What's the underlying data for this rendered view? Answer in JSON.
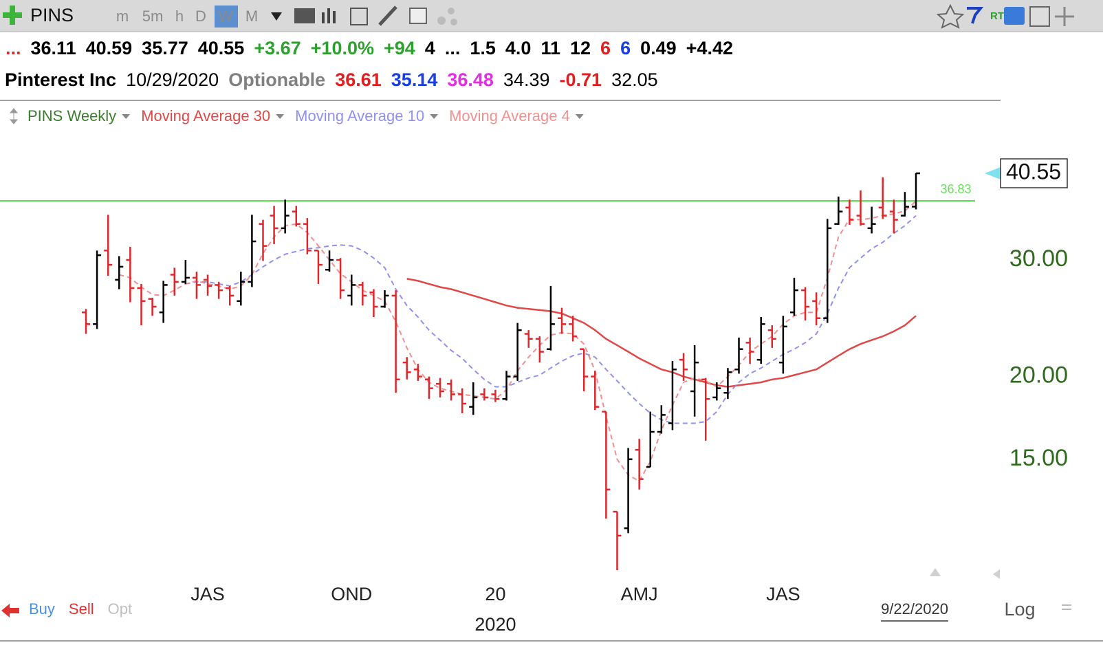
{
  "toolbar": {
    "symbol": "PINS",
    "timeframes": [
      "m",
      "5m",
      "h",
      "D",
      "W",
      "M"
    ],
    "active_timeframe": 4,
    "rt_label": "RT"
  },
  "quote": [
    {
      "text": "...",
      "color": "#d03030",
      "bold": false
    },
    {
      "text": "36.11",
      "color": "#000000",
      "bold": true
    },
    {
      "text": "40.59",
      "color": "#000000",
      "bold": true
    },
    {
      "text": "35.77",
      "color": "#000000",
      "bold": true
    },
    {
      "text": "40.55",
      "color": "#000000",
      "bold": true
    },
    {
      "text": "+3.67",
      "color": "#2ea02e",
      "bold": true
    },
    {
      "text": "+10.0%",
      "color": "#2ea02e",
      "bold": true
    },
    {
      "text": "+94",
      "color": "#2ea02e",
      "bold": true
    },
    {
      "text": "4",
      "color": "#000000",
      "bold": true
    },
    {
      "text": "...",
      "color": "#000000",
      "bold": true
    },
    {
      "text": "1.5",
      "color": "#000000",
      "bold": true
    },
    {
      "text": "4.0",
      "color": "#000000",
      "bold": true
    },
    {
      "text": "11",
      "color": "#000000",
      "bold": false
    },
    {
      "text": "12",
      "color": "#000000",
      "bold": true
    },
    {
      "text": "6",
      "color": "#e02020",
      "bold": true
    },
    {
      "text": "6",
      "color": "#1a3fe0",
      "bold": true
    },
    {
      "text": "0.49",
      "color": "#000000",
      "bold": true
    },
    {
      "text": "+4.42",
      "color": "#000000",
      "bold": true
    }
  ],
  "info": [
    {
      "text": "Pinterest Inc",
      "color": "#000000",
      "bold": true
    },
    {
      "text": "10/29/2020",
      "color": "#000000",
      "bold": false
    },
    {
      "text": "Optionable",
      "color": "#808080",
      "bold": true
    },
    {
      "text": "36.61",
      "color": "#e02020",
      "bold": true
    },
    {
      "text": "35.14",
      "color": "#1a3fe0",
      "bold": true
    },
    {
      "text": "36.48",
      "color": "#e030e0",
      "bold": true
    },
    {
      "text": "34.39",
      "color": "#000000",
      "bold": false
    },
    {
      "text": "-0.71",
      "color": "#e02020",
      "bold": true
    },
    {
      "text": "32.05",
      "color": "#000000",
      "bold": false
    }
  ],
  "order_buttons": [
    {
      "text": "Buy",
      "color": "#4a8fe0"
    },
    {
      "text": "Sell",
      "color": "#e03030"
    },
    {
      "text": "Opt",
      "color": "#c0c0c0"
    }
  ],
  "chart_data": {
    "type": "ohlc",
    "name": "PINS Weekly",
    "name_color": "#3a7d2c",
    "up_color": "#000000",
    "down_color": "#e0262a",
    "log_scale": true,
    "grid": false,
    "categories": [
      null,
      null,
      null,
      null,
      null,
      null,
      null,
      null,
      null,
      null,
      null,
      "JAS",
      null,
      null,
      null,
      null,
      null,
      null,
      null,
      null,
      null,
      null,
      null,
      null,
      "OND",
      null,
      null,
      null,
      null,
      null,
      null,
      null,
      null,
      null,
      null,
      null,
      null,
      "20",
      null,
      null,
      null,
      null,
      null,
      null,
      null,
      null,
      null,
      null,
      null,
      null,
      "AMJ",
      null,
      null,
      null,
      null,
      null,
      null,
      null,
      null,
      null,
      null,
      null,
      null,
      "JAS",
      null,
      null,
      null,
      null,
      null,
      null,
      null,
      null,
      null,
      null,
      null,
      null
    ],
    "years": [
      null,
      null,
      null,
      null,
      null,
      null,
      null,
      null,
      null,
      null,
      null,
      null,
      null,
      null,
      null,
      null,
      null,
      null,
      null,
      null,
      null,
      null,
      null,
      null,
      null,
      null,
      null,
      null,
      null,
      null,
      null,
      null,
      null,
      null,
      null,
      null,
      null,
      "2020",
      null,
      null,
      null,
      null,
      null,
      null,
      null,
      null,
      null,
      null,
      null,
      null,
      null,
      null,
      null,
      null,
      null,
      null,
      null,
      null,
      null,
      null,
      null,
      null,
      null,
      null,
      null,
      null,
      null,
      null,
      null,
      null,
      null,
      null,
      null,
      null,
      null,
      null
    ],
    "open": [
      25.0,
      24.0,
      31.0,
      28.0,
      30.0,
      27.2,
      26.2,
      25.0,
      28.5,
      27.8,
      28.2,
      28.0,
      27.5,
      27.2,
      26.0,
      27.8,
      34.0,
      35.0,
      33.5,
      35.5,
      34.0,
      31.0,
      29.0,
      30.0,
      26.5,
      27.5,
      26.8,
      25.5,
      26.5,
      21.0,
      20.5,
      19.8,
      19.5,
      19.5,
      18.8,
      18.0,
      18.8,
      18.8,
      18.5,
      20.0,
      23.2,
      22.8,
      22.0,
      24.5,
      24.0,
      22.0,
      20.0,
      17.7,
      12.5,
      11.8,
      15.5,
      14.6,
      16.5,
      17.0,
      21.2,
      19.0,
      19.8,
      18.6,
      18.9,
      20.5,
      22.5,
      21.2,
      23.5,
      21.0,
      25.0,
      27.0,
      26.0,
      24.5,
      34.0,
      36.0,
      35.0,
      33.5,
      36.0,
      35.5,
      35.0,
      36.11
    ],
    "high": [
      25.3,
      31.0,
      35.1,
      30.4,
      31.4,
      27.6,
      26.3,
      27.9,
      29.2,
      30.0,
      28.8,
      28.5,
      27.8,
      27.4,
      28.8,
      35.1,
      34.5,
      36.2,
      37.0,
      36.2,
      34.7,
      31.0,
      31.0,
      30.2,
      28.5,
      27.8,
      27.1,
      27.0,
      27.0,
      21.4,
      20.9,
      20.0,
      19.9,
      19.8,
      19.2,
      19.6,
      19.2,
      19.1,
      20.4,
      24.1,
      23.5,
      23.0,
      27.4,
      25.4,
      24.7,
      22.0,
      20.4,
      17.7,
      12.5,
      15.6,
      16.1,
      17.7,
      18.1,
      21.1,
      21.7,
      22.3,
      19.9,
      19.6,
      20.6,
      22.9,
      22.9,
      24.6,
      23.9,
      24.7,
      28.2,
      27.3,
      26.8,
      34.6,
      37.4,
      37.0,
      38.2,
      36.1,
      40.0,
      37.0,
      38.0,
      40.59
    ],
    "low": [
      23.2,
      23.6,
      28.4,
      27.1,
      25.9,
      23.9,
      24.7,
      24.1,
      26.5,
      27.6,
      26.2,
      26.5,
      26.2,
      25.6,
      25.6,
      27.3,
      29.9,
      31.7,
      32.9,
      33.7,
      30.6,
      27.6,
      28.8,
      26.2,
      25.6,
      25.6,
      24.6,
      25.4,
      18.9,
      19.8,
      19.7,
      18.5,
      18.6,
      18.4,
      17.6,
      17.5,
      18.4,
      18.3,
      18.4,
      19.7,
      22.1,
      21.0,
      21.9,
      23.2,
      22.6,
      19.0,
      17.8,
      12.2,
      10.2,
      11.6,
      13.5,
      14.6,
      16.4,
      16.6,
      19.7,
      17.4,
      16.0,
      18.4,
      18.5,
      20.2,
      20.9,
      20.9,
      22.1,
      20.2,
      24.7,
      24.3,
      23.9,
      24.1,
      33.9,
      33.9,
      33.8,
      32.9,
      34.6,
      32.9,
      34.9,
      35.77
    ],
    "close": [
      24.0,
      30.5,
      29.5,
      29.3,
      27.2,
      26.0,
      25.5,
      27.5,
      27.8,
      28.2,
      27.5,
      27.4,
      27.0,
      26.5,
      27.8,
      32.0,
      31.5,
      33.5,
      35.0,
      34.0,
      31.0,
      29.5,
      30.0,
      27.0,
      27.5,
      26.5,
      25.5,
      26.5,
      19.8,
      20.3,
      20.0,
      19.2,
      19.0,
      18.8,
      18.2,
      18.6,
      18.6,
      18.5,
      20.0,
      23.5,
      22.8,
      21.8,
      24.0,
      24.0,
      23.0,
      20.0,
      18.0,
      13.5,
      11.5,
      15.0,
      14.0,
      16.5,
      17.5,
      20.5,
      20.5,
      21.0,
      18.5,
      19.2,
      20.3,
      22.0,
      21.8,
      24.0,
      22.8,
      23.8,
      27.0,
      25.5,
      24.5,
      33.5,
      35.5,
      34.5,
      34.0,
      34.0,
      35.0,
      34.5,
      36.1,
      40.55
    ],
    "series": [
      {
        "name": "Moving Average 30",
        "color": "#e04848",
        "dashed": false,
        "values": [
          null,
          null,
          null,
          null,
          null,
          null,
          null,
          null,
          null,
          null,
          null,
          null,
          null,
          null,
          null,
          null,
          null,
          null,
          null,
          null,
          null,
          null,
          null,
          null,
          null,
          null,
          null,
          null,
          null,
          28.1,
          27.9,
          27.6,
          27.3,
          27.1,
          26.8,
          26.5,
          26.2,
          25.9,
          25.6,
          25.4,
          25.3,
          25.2,
          25.1,
          24.9,
          24.5,
          24.1,
          23.5,
          22.8,
          22.3,
          21.8,
          21.3,
          20.9,
          20.5,
          20.3,
          20.0,
          19.8,
          19.6,
          19.4,
          19.3,
          19.4,
          19.5,
          19.6,
          19.8,
          19.9,
          20.1,
          20.3,
          20.5,
          21.0,
          21.5,
          22.0,
          22.4,
          22.7,
          23.0,
          23.4,
          23.9,
          24.7
        ]
      },
      {
        "name": "Moving Average 10",
        "color": "#9090f0",
        "dashed": true,
        "values": [
          null,
          null,
          null,
          null,
          null,
          null,
          null,
          null,
          null,
          27.6,
          27.8,
          27.8,
          27.6,
          27.4,
          27.8,
          28.5,
          29.3,
          30.0,
          30.6,
          30.9,
          31.2,
          31.3,
          31.5,
          31.6,
          31.5,
          31.0,
          30.2,
          29.2,
          27.1,
          25.6,
          24.6,
          23.5,
          22.7,
          21.9,
          21.3,
          20.5,
          19.8,
          19.3,
          19.3,
          19.6,
          19.9,
          20.1,
          20.6,
          21.1,
          21.5,
          21.7,
          21.4,
          20.5,
          19.7,
          18.9,
          18.2,
          17.6,
          17.2,
          17.0,
          17.0,
          17.0,
          17.1,
          17.7,
          18.8,
          19.6,
          20.2,
          20.6,
          21.1,
          21.6,
          22.0,
          22.5,
          23.2,
          24.9,
          27.2,
          29.2,
          30.2,
          31.2,
          31.9,
          32.9,
          33.8,
          35.0
        ]
      },
      {
        "name": "Moving Average 4",
        "color": "#f09090",
        "dashed": true,
        "values": [
          null,
          null,
          null,
          28.5,
          28.2,
          27.3,
          26.6,
          26.5,
          27.0,
          27.6,
          27.9,
          27.6,
          27.4,
          27.1,
          27.4,
          28.5,
          30.7,
          32.5,
          33.8,
          34.0,
          33.0,
          31.5,
          30.0,
          28.6,
          27.8,
          27.0,
          26.5,
          26.0,
          24.2,
          22.1,
          20.5,
          19.6,
          19.2,
          19.0,
          18.8,
          18.7,
          18.6,
          18.5,
          19.1,
          20.4,
          21.4,
          22.3,
          23.1,
          23.3,
          23.2,
          22.4,
          20.4,
          17.4,
          15.0,
          14.2,
          13.9,
          14.9,
          16.6,
          18.1,
          19.6,
          19.9,
          19.7,
          19.3,
          20.0,
          20.8,
          21.8,
          22.4,
          23.0,
          24.0,
          24.7,
          25.0,
          25.0,
          28.2,
          32.5,
          34.6,
          34.5,
          34.7,
          35.0,
          35.2,
          35.6,
          36.8
        ]
      }
    ],
    "ylim": [
      9.82,
      47.6
    ],
    "yticks": [
      {
        "value": 30,
        "label": "30.00"
      },
      {
        "value": 20,
        "label": "20.00"
      },
      {
        "value": 15,
        "label": "15.00"
      }
    ],
    "hline": {
      "value": 36.83,
      "label": "36.83",
      "color": "#66e05a"
    },
    "cursor_date": "9/22/2020",
    "scale_label": "Log"
  }
}
